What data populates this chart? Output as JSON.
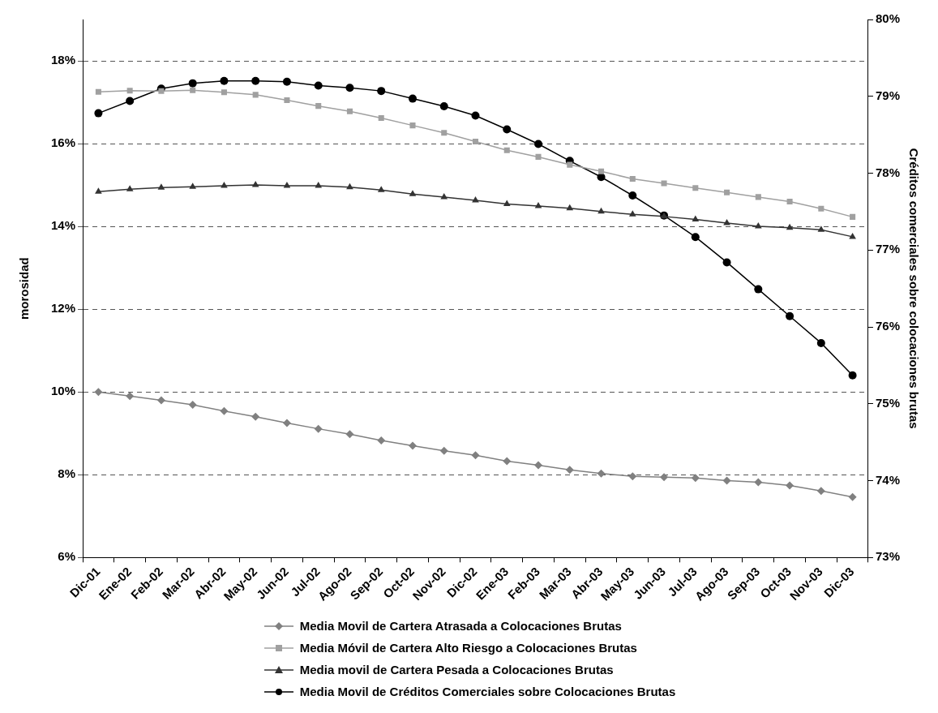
{
  "chart_data": {
    "type": "line",
    "categories": [
      "Dic-01",
      "Ene-02",
      "Feb-02",
      "Mar-02",
      "Abr-02",
      "May-02",
      "Jun-02",
      "Jul-02",
      "Ago-02",
      "Sep-02",
      "Oct-02",
      "Nov-02",
      "Dic-02",
      "Ene-03",
      "Feb-03",
      "Mar-03",
      "Abr-03",
      "May-03",
      "Jun-03",
      "Jul-03",
      "Ago-03",
      "Sep-03",
      "Oct-03",
      "Nov-03",
      "Dic-03"
    ],
    "ylabel": "morosidad",
    "y2label": "Créditos comerciales sobre colocaciones brutas",
    "ylim": [
      6,
      19
    ],
    "yticks": [
      {
        "value": 6,
        "label": "6%"
      },
      {
        "value": 8,
        "label": "8%"
      },
      {
        "value": 10,
        "label": "10%"
      },
      {
        "value": 12,
        "label": "12%"
      },
      {
        "value": 14,
        "label": "14%"
      },
      {
        "value": 16,
        "label": "16%"
      },
      {
        "value": 18,
        "label": "18%"
      }
    ],
    "y2lim": [
      73,
      80
    ],
    "y2ticks": [
      {
        "value": 73,
        "label": "73%"
      },
      {
        "value": 74,
        "label": "74%"
      },
      {
        "value": 75,
        "label": "75%"
      },
      {
        "value": 76,
        "label": "76%"
      },
      {
        "value": 77,
        "label": "77%"
      },
      {
        "value": 78,
        "label": "78%"
      },
      {
        "value": 79,
        "label": "79%"
      },
      {
        "value": 80,
        "label": "80%"
      }
    ],
    "grid": "y",
    "legend": "bottom",
    "series": [
      {
        "name": "Media Movil de Cartera Atrasada a Colocaciones Brutas",
        "color": "#808080",
        "marker": "diamond",
        "values": [
          10.0,
          9.9,
          9.8,
          9.69,
          9.54,
          9.4,
          9.25,
          9.11,
          8.98,
          8.83,
          8.7,
          8.58,
          8.47,
          8.33,
          8.23,
          8.12,
          8.03,
          7.96,
          7.94,
          7.92,
          7.86,
          7.82,
          7.74,
          7.61,
          7.46
        ]
      },
      {
        "name": "Media Móvil de Cartera Alto Riesgo a Colocaciones Brutas",
        "color": "#a0a0a0",
        "marker": "square",
        "values": [
          17.25,
          17.28,
          17.27,
          17.29,
          17.24,
          17.18,
          17.05,
          16.91,
          16.78,
          16.62,
          16.44,
          16.26,
          16.05,
          15.84,
          15.68,
          15.49,
          15.33,
          15.15,
          15.04,
          14.93,
          14.82,
          14.71,
          14.6,
          14.43,
          14.23
        ]
      },
      {
        "name": "Media movil de Cartera Pesada a Colocaciones Brutas",
        "color": "#333333",
        "marker": "triangle",
        "values": [
          14.84,
          14.9,
          14.94,
          14.96,
          14.98,
          15.0,
          14.98,
          14.98,
          14.95,
          14.88,
          14.78,
          14.71,
          14.63,
          14.54,
          14.49,
          14.44,
          14.36,
          14.29,
          14.24,
          14.17,
          14.08,
          14.0,
          13.97,
          13.92,
          13.75
        ]
      },
      {
        "name": "Media Movil de Créditos Comerciales sobre Colocaciones Brutas",
        "color": "#000000",
        "marker": "circle",
        "axis": "y2",
        "values": [
          78.78,
          78.94,
          79.1,
          79.17,
          79.2,
          79.2,
          79.19,
          79.14,
          79.11,
          79.07,
          78.97,
          78.87,
          78.75,
          78.57,
          78.38,
          78.16,
          77.95,
          77.71,
          77.45,
          77.17,
          76.84,
          76.49,
          76.14,
          75.79,
          75.37
        ]
      }
    ]
  }
}
